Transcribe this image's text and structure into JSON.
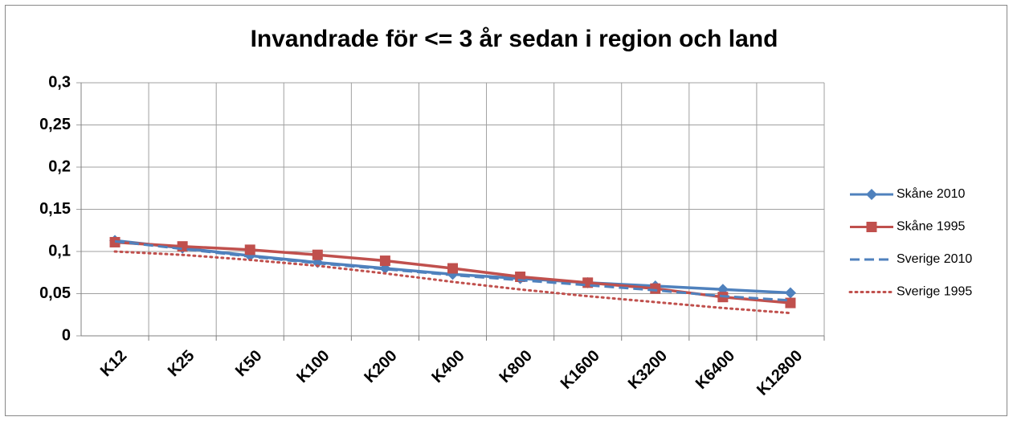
{
  "chart_data": {
    "type": "line",
    "title": "Invandrade för <= 3 år sedan i region och land",
    "categories": [
      "K12",
      "K25",
      "K50",
      "K100",
      "K200",
      "K400",
      "K800",
      "K1600",
      "K3200",
      "K6400",
      "K12800"
    ],
    "series": [
      {
        "name": "Skåne 2010",
        "color": "#4f81bd",
        "marker": "diamond",
        "dash": "solid",
        "values": [
          0.113,
          0.104,
          0.095,
          0.087,
          0.08,
          0.073,
          0.068,
          0.063,
          0.059,
          0.055,
          0.051
        ]
      },
      {
        "name": "Skåne 1995",
        "color": "#c0504d",
        "marker": "square",
        "dash": "solid",
        "values": [
          0.111,
          0.106,
          0.102,
          0.096,
          0.089,
          0.08,
          0.07,
          0.063,
          0.056,
          0.046,
          0.039
        ]
      },
      {
        "name": "Sverige 2010",
        "color": "#4f81bd",
        "marker": "none",
        "dash": "dashed",
        "values": [
          0.112,
          0.103,
          0.094,
          0.086,
          0.079,
          0.072,
          0.066,
          0.06,
          0.054,
          0.047,
          0.042
        ]
      },
      {
        "name": "Sverige 1995",
        "color": "#c0504d",
        "marker": "none",
        "dash": "dotted",
        "values": [
          0.1,
          0.096,
          0.09,
          0.083,
          0.074,
          0.064,
          0.055,
          0.047,
          0.04,
          0.033,
          0.027
        ]
      }
    ],
    "ylim": [
      0,
      0.3
    ],
    "yticks": [
      0,
      {
        "value": 0.05,
        "label": "0,05"
      },
      {
        "value": 0.1,
        "label": "0,1"
      },
      {
        "value": 0.15,
        "label": "0,15"
      },
      {
        "value": 0.2,
        "label": "0,2"
      },
      {
        "value": 0.25,
        "label": "0,25"
      },
      {
        "value": 0.3,
        "label": "0,3"
      }
    ],
    "grid": true,
    "legend": "right"
  }
}
